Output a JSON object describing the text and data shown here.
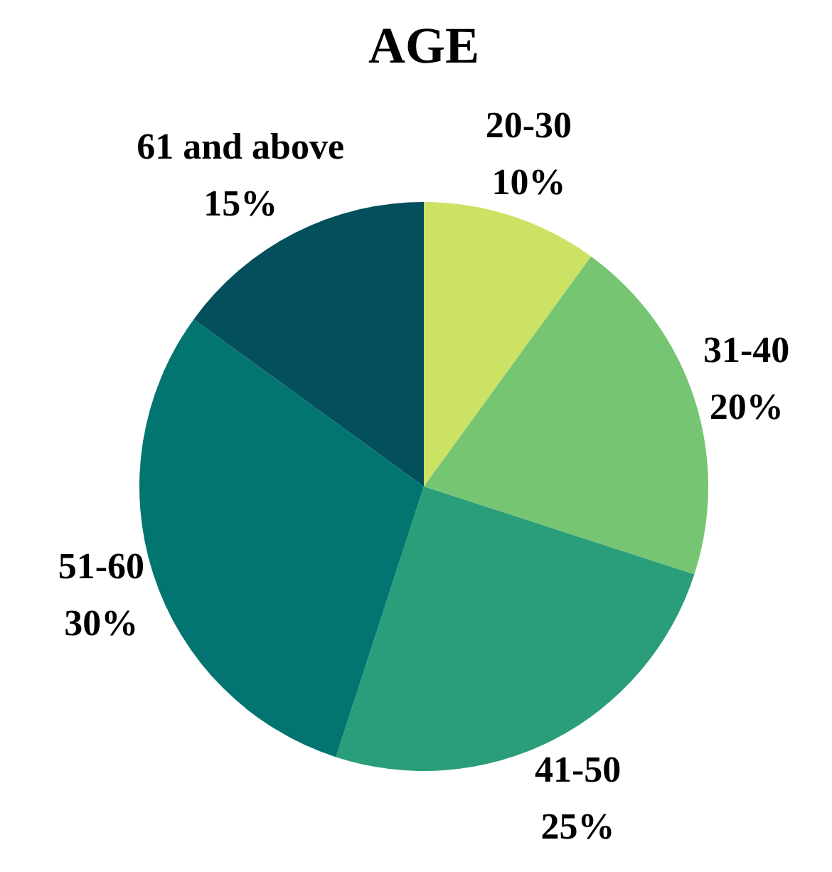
{
  "chart_data": {
    "type": "pie",
    "title": "AGE",
    "categories": [
      "20-30",
      "31-40",
      "41-50",
      "51-60",
      "61 and above"
    ],
    "values": [
      10,
      20,
      25,
      30,
      15
    ],
    "colors": [
      "#cbe265",
      "#75c572",
      "#2a9d7a",
      "#037571",
      "#034f5c"
    ],
    "value_labels": [
      "10%",
      "20%",
      "25%",
      "30%",
      "15%"
    ]
  }
}
